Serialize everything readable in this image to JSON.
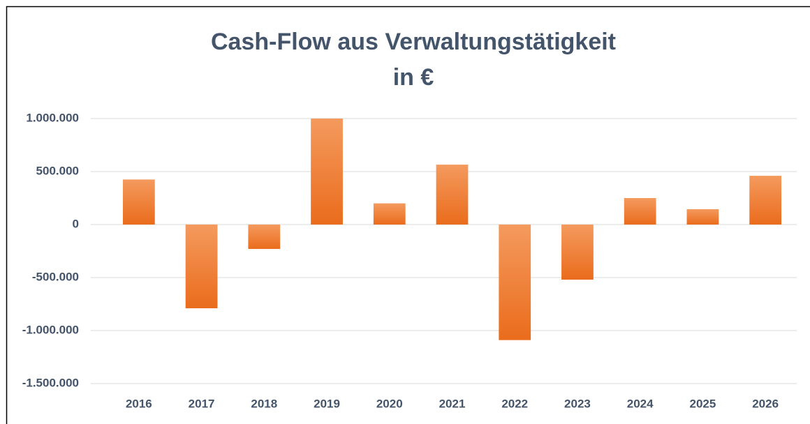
{
  "chart_data": {
    "type": "bar",
    "title": "Cash-Flow aus Verwaltungstätigkeit",
    "subtitle": "in €",
    "categories": [
      "2016",
      "2017",
      "2018",
      "2019",
      "2020",
      "2021",
      "2022",
      "2023",
      "2024",
      "2025",
      "2026"
    ],
    "values": [
      425000,
      -790000,
      -230000,
      1000000,
      200000,
      565000,
      -1090000,
      -520000,
      250000,
      145000,
      460000
    ],
    "color": "#ed7d31",
    "ylim": [
      -1500000,
      1000000
    ],
    "yticks": [
      {
        "value": -1500000,
        "label": "-1.500.000"
      },
      {
        "value": -1000000,
        "label": "-1.000.000"
      },
      {
        "value": -500000,
        "label": "-500.000"
      },
      0,
      {
        "value": 500000,
        "label": "500.000"
      },
      {
        "value": 1000000,
        "label": "1.000.000"
      }
    ],
    "grid": true
  }
}
